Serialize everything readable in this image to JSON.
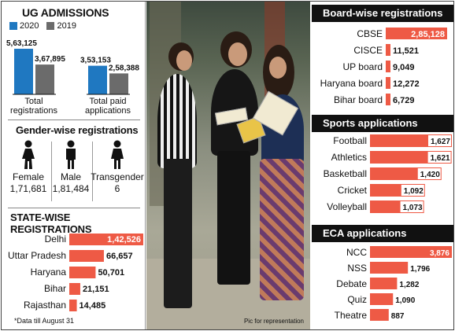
{
  "ug_admissions": {
    "title": "UG ADMISSIONS",
    "legend": [
      {
        "label": "2020",
        "color": "#1f78c1"
      },
      {
        "label": "2019",
        "color": "#6b6b6b"
      }
    ],
    "groups": [
      {
        "label_lines": [
          "Total",
          "registrations"
        ],
        "v2020": 563125,
        "v2019": 367895,
        "t2020": "5,63,125",
        "t2019": "3,67,895"
      },
      {
        "label_lines": [
          "Total paid",
          "applications"
        ],
        "v2020": 353153,
        "v2019": 258388,
        "t2020": "3,53,153",
        "t2019": "2,58,388"
      }
    ]
  },
  "gender": {
    "title": "Gender-wise registrations",
    "items": [
      {
        "label": "Female",
        "value": "1,71,681",
        "icon": "female-icon"
      },
      {
        "label": "Male",
        "value": "1,81,484",
        "icon": "male-icon"
      },
      {
        "label": "Transgender",
        "value": "6",
        "icon": "transgender-icon"
      }
    ]
  },
  "state": {
    "title": "STATE-WISE REGISTRATIONS",
    "footnote": "*Data till August 31"
  },
  "photo": {
    "credit": "Pic for representation"
  },
  "board": {
    "title": "Board-wise registrations"
  },
  "sports": {
    "title": "Sports applications"
  },
  "eca": {
    "title": "ECA applications"
  },
  "chart_data": [
    {
      "type": "bar",
      "title": "UG ADMISSIONS",
      "categories": [
        "Total registrations",
        "Total paid applications"
      ],
      "series": [
        {
          "name": "2020",
          "values": [
            563125,
            353153
          ]
        },
        {
          "name": "2019",
          "values": [
            367895,
            258388
          ]
        }
      ]
    },
    {
      "type": "bar",
      "title": "STATE-WISE REGISTRATIONS",
      "categories": [
        "Delhi",
        "Uttar Pradesh",
        "Haryana",
        "Bihar",
        "Rajasthan"
      ],
      "values": [
        142526,
        66657,
        50701,
        21151,
        14485
      ],
      "labels": [
        "1,42,526",
        "66,657",
        "50,701",
        "21,151",
        "14,485"
      ]
    },
    {
      "type": "bar",
      "title": "Board-wise registrations",
      "categories": [
        "CBSE",
        "CISCE",
        "UP board",
        "Haryana board",
        "Bihar board"
      ],
      "values": [
        285128,
        11521,
        9049,
        12272,
        6729
      ],
      "labels": [
        "2,85,128",
        "11,521",
        "9,049",
        "12,272",
        "6,729"
      ]
    },
    {
      "type": "bar",
      "title": "Sports applications",
      "categories": [
        "Football",
        "Athletics",
        "Basketball",
        "Cricket",
        "Volleyball"
      ],
      "values": [
        1627,
        1621,
        1420,
        1092,
        1073
      ],
      "labels": [
        "1,627",
        "1,621",
        "1,420",
        "1,092",
        "1,073"
      ]
    },
    {
      "type": "bar",
      "title": "ECA applications",
      "categories": [
        "NCC",
        "NSS",
        "Debate",
        "Quiz",
        "Theatre"
      ],
      "values": [
        3876,
        1796,
        1282,
        1090,
        887
      ],
      "labels": [
        "3,876",
        "1,796",
        "1,282",
        "1,090",
        "887"
      ]
    }
  ],
  "colors": {
    "bar": "#ee5a45",
    "blue": "#1f78c1",
    "grey": "#6b6b6b"
  }
}
